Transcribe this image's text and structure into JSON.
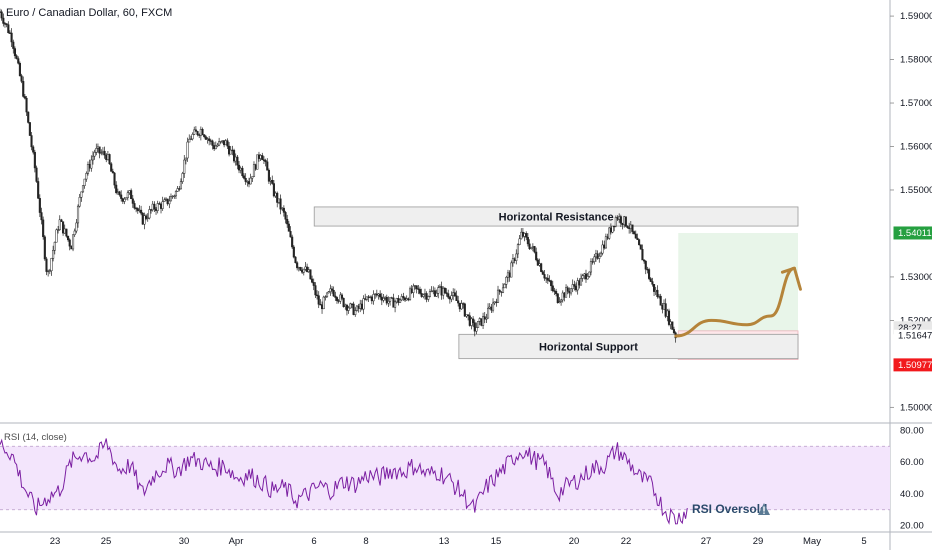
{
  "header": {
    "title": "Euro / Canadian Dollar, 60, FXCM"
  },
  "chart_data": {
    "type": "candlestick",
    "title": "Euro / Canadian Dollar, 60, FXCM",
    "y_ticks": [
      "1.59000",
      "1.58000",
      "1.57000",
      "1.56000",
      "1.55000",
      "1.53000",
      "1.52000",
      "1.50000"
    ],
    "y_tick_values": [
      1.59,
      1.58,
      1.57,
      1.56,
      1.55,
      1.53,
      1.52,
      1.5
    ],
    "ylim": [
      1.4964,
      1.5937
    ],
    "x_ticks": [
      "23",
      "25",
      "30",
      "Apr",
      "6",
      "8",
      "13",
      "15",
      "20",
      "22",
      "27",
      "29",
      "May",
      "5"
    ],
    "price_path": [
      [
        0,
        1.591
      ],
      [
        1,
        1.585
      ],
      [
        2,
        1.572
      ],
      [
        3,
        1.554
      ],
      [
        4,
        1.53
      ],
      [
        5,
        1.543
      ],
      [
        6,
        1.537
      ],
      [
        7,
        1.552
      ],
      [
        8,
        1.559
      ],
      [
        9,
        1.558
      ],
      [
        10,
        1.548
      ],
      [
        11,
        1.549
      ],
      [
        12,
        1.543
      ],
      [
        13,
        1.546
      ],
      [
        14,
        1.547
      ],
      [
        15,
        1.55
      ],
      [
        16,
        1.562
      ],
      [
        17,
        1.564
      ],
      [
        18,
        1.56
      ],
      [
        19,
        1.561
      ],
      [
        20,
        1.556
      ],
      [
        21,
        1.552
      ],
      [
        22,
        1.559
      ],
      [
        23,
        1.55
      ],
      [
        24,
        1.544
      ],
      [
        25,
        1.533
      ],
      [
        26,
        1.531
      ],
      [
        27,
        1.523
      ],
      [
        28,
        1.527
      ],
      [
        29,
        1.524
      ],
      [
        30,
        1.522
      ],
      [
        31,
        1.525
      ],
      [
        32,
        1.526
      ],
      [
        33,
        1.524
      ],
      [
        34,
        1.525
      ],
      [
        35,
        1.527
      ],
      [
        36,
        1.526
      ],
      [
        37,
        1.527
      ],
      [
        38,
        1.526
      ],
      [
        39,
        1.523
      ],
      [
        40,
        1.518
      ],
      [
        41,
        1.521
      ],
      [
        42,
        1.526
      ],
      [
        43,
        1.531
      ],
      [
        44,
        1.54
      ],
      [
        45,
        1.536
      ],
      [
        46,
        1.53
      ],
      [
        47,
        1.525
      ],
      [
        48,
        1.527
      ],
      [
        49,
        1.529
      ],
      [
        50,
        1.533
      ],
      [
        51,
        1.538
      ],
      [
        52,
        1.544
      ],
      [
        53,
        1.542
      ],
      [
        54,
        1.536
      ],
      [
        55,
        1.528
      ],
      [
        56,
        1.523
      ],
      [
        57,
        1.5164
      ]
    ],
    "forecast_path": [
      [
        57,
        1.5164
      ],
      [
        60,
        1.52
      ],
      [
        63,
        1.519
      ],
      [
        65,
        1.521
      ],
      [
        67,
        1.532
      ]
    ],
    "resistance_zone": {
      "label": "Horizontal Resistance",
      "y_top": 1.5461,
      "y_bottom": 1.5417,
      "x_from": 26.5,
      "x_to": 67.3
    },
    "support_zone": {
      "label": "Horizontal Support",
      "y_top": 1.5168,
      "y_bottom": 1.5112,
      "x_from": 38.7,
      "x_to": 67.3
    },
    "target_zone": {
      "y_top": 1.5401,
      "y_bottom": 1.5176,
      "x_from": 57.2,
      "x_to": 67.3,
      "color": "#e8f5e9"
    },
    "stop_zone": {
      "y_top": 1.5176,
      "y_bottom": 1.511,
      "x_from": 57.2,
      "x_to": 67.3,
      "color": "#fde7ea"
    },
    "price_tags": [
      {
        "label": "1.54011",
        "value": 1.54011,
        "color": "#26a041",
        "text_color": "#ffffff"
      },
      {
        "label": "28:27",
        "value": 1.5183,
        "color": "#e8e8e8",
        "text_color": "#131722"
      },
      {
        "label": "1.51647",
        "value": 1.51647,
        "color": "#ffffff",
        "text_color": "#131722"
      },
      {
        "label": "1.50977",
        "value": 1.50977,
        "color": "#f2191c",
        "text_color": "#ffffff"
      }
    ],
    "rsi": {
      "label": "RSI (14, close)",
      "y_ticks": [
        "80.00",
        "60.00",
        "40.00",
        "20.00"
      ],
      "y_tick_values": [
        80,
        60,
        40,
        20
      ],
      "ylim": [
        16,
        84
      ],
      "overbought": 70,
      "oversold": 30,
      "band_color": "#f3e5fc",
      "line_color": "#7b1fa2",
      "note": "RSI Oversold",
      "path": [
        [
          0,
          72
        ],
        [
          1,
          65
        ],
        [
          2,
          45
        ],
        [
          3,
          30
        ],
        [
          4,
          38
        ],
        [
          5,
          42
        ],
        [
          6,
          60
        ],
        [
          7,
          66
        ],
        [
          8,
          62
        ],
        [
          9,
          72
        ],
        [
          10,
          55
        ],
        [
          11,
          58
        ],
        [
          12,
          40
        ],
        [
          13,
          52
        ],
        [
          14,
          58
        ],
        [
          15,
          55
        ],
        [
          16,
          62
        ],
        [
          17,
          60
        ],
        [
          18,
          56
        ],
        [
          19,
          58
        ],
        [
          20,
          50
        ],
        [
          21,
          52
        ],
        [
          22,
          48
        ],
        [
          23,
          42
        ],
        [
          24,
          44
        ],
        [
          25,
          36
        ],
        [
          26,
          40
        ],
        [
          27,
          45
        ],
        [
          28,
          42
        ],
        [
          29,
          48
        ],
        [
          30,
          46
        ],
        [
          31,
          52
        ],
        [
          32,
          50
        ],
        [
          33,
          55
        ],
        [
          34,
          54
        ],
        [
          35,
          58
        ],
        [
          36,
          52
        ],
        [
          37,
          54
        ],
        [
          38,
          48
        ],
        [
          39,
          40
        ],
        [
          40,
          30
        ],
        [
          41,
          44
        ],
        [
          42,
          52
        ],
        [
          43,
          60
        ],
        [
          44,
          68
        ],
        [
          45,
          62
        ],
        [
          46,
          58
        ],
        [
          47,
          40
        ],
        [
          48,
          46
        ],
        [
          49,
          50
        ],
        [
          50,
          56
        ],
        [
          51,
          58
        ],
        [
          52,
          68
        ],
        [
          53,
          60
        ],
        [
          54,
          50
        ],
        [
          55,
          45
        ],
        [
          56,
          30
        ],
        [
          57,
          24
        ],
        [
          58,
          30
        ]
      ]
    }
  }
}
